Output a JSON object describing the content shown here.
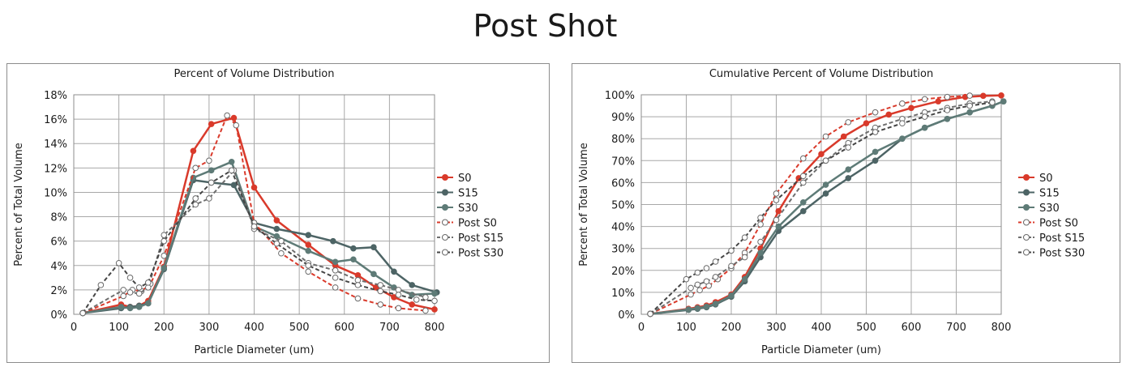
{
  "title": "Post Shot",
  "chart_data": [
    {
      "type": "line",
      "title": "Percent of Volume Distribution",
      "xlabel": "Particle Diameter (um)",
      "ylabel": "Percent of Total Volume",
      "xlim": [
        0,
        800
      ],
      "ylim": [
        0,
        18
      ],
      "xticks": [
        "0",
        "100",
        "200",
        "300",
        "400",
        "500",
        "600",
        "700",
        "800"
      ],
      "yticks": [
        "0%",
        "2%",
        "4%",
        "6%",
        "8%",
        "10%",
        "12%",
        "14%",
        "16%",
        "18%"
      ],
      "grid": true,
      "legend": "right",
      "series": [
        {
          "name": "S0",
          "color": "#d93a2b",
          "dash": false,
          "filled": true,
          "x": [
            20,
            105,
            125,
            145,
            165,
            200,
            265,
            305,
            355,
            400,
            450,
            520,
            580,
            630,
            670,
            710,
            750,
            800
          ],
          "y": [
            0.1,
            0.8,
            0.6,
            0.7,
            1.1,
            3.9,
            13.4,
            15.6,
            16.1,
            10.4,
            7.7,
            5.7,
            4.0,
            3.2,
            2.2,
            1.4,
            0.8,
            0.4
          ]
        },
        {
          "name": "S15",
          "color": "#4d6465",
          "dash": false,
          "filled": true,
          "x": [
            20,
            105,
            125,
            145,
            165,
            200,
            265,
            305,
            355,
            400,
            450,
            520,
            575,
            620,
            665,
            710,
            750,
            805
          ],
          "y": [
            0.1,
            0.5,
            0.6,
            0.7,
            0.9,
            3.7,
            11.0,
            10.8,
            10.6,
            7.5,
            7.0,
            6.5,
            6.0,
            5.4,
            5.5,
            3.5,
            2.4,
            1.8
          ]
        },
        {
          "name": "S30",
          "color": "#5e7b77",
          "dash": false,
          "filled": true,
          "x": [
            20,
            105,
            125,
            145,
            165,
            200,
            265,
            305,
            350,
            400,
            450,
            520,
            580,
            620,
            665,
            710,
            750,
            800
          ],
          "y": [
            0.1,
            0.6,
            0.5,
            0.6,
            0.9,
            3.8,
            11.2,
            11.8,
            12.5,
            7.2,
            6.4,
            5.2,
            4.3,
            4.5,
            3.3,
            2.2,
            1.6,
            1.7
          ]
        },
        {
          "name": "Post S0",
          "color": "#d93a2b",
          "dash": true,
          "filled": false,
          "x": [
            20,
            110,
            130,
            150,
            170,
            200,
            270,
            300,
            340,
            360,
            400,
            460,
            520,
            580,
            630,
            680,
            720,
            780
          ],
          "y": [
            0.1,
            1.5,
            2.0,
            1.9,
            2.5,
            4.8,
            12.0,
            12.6,
            16.3,
            15.5,
            7.5,
            5.0,
            3.5,
            2.2,
            1.3,
            0.8,
            0.5,
            0.3
          ]
        },
        {
          "name": "Post S15",
          "color": "#6e6e6e",
          "dash": true,
          "filled": false,
          "x": [
            20,
            110,
            125,
            145,
            165,
            200,
            270,
            300,
            355,
            400,
            460,
            520,
            580,
            630,
            680,
            720,
            780
          ],
          "y": [
            0.1,
            2.0,
            1.8,
            1.7,
            2.2,
            6.5,
            9.0,
            9.5,
            11.8,
            7.0,
            6.0,
            4.2,
            3.6,
            2.8,
            2.4,
            2.0,
            1.4
          ]
        },
        {
          "name": "Post S30",
          "color": "#454545",
          "dash": true,
          "filled": false,
          "x": [
            20,
            60,
            100,
            125,
            145,
            165,
            200,
            270,
            305,
            350,
            400,
            450,
            520,
            580,
            630,
            680,
            720,
            760,
            800
          ],
          "y": [
            0.1,
            2.4,
            4.2,
            3.0,
            2.2,
            2.6,
            6.0,
            9.5,
            10.8,
            11.8,
            7.2,
            5.8,
            4.0,
            3.0,
            2.4,
            1.9,
            1.6,
            1.2,
            1.1
          ]
        }
      ]
    },
    {
      "type": "line",
      "title": "Cumulative Percent of Volume Distribution",
      "xlabel": "Particle Diameter (um)",
      "ylabel": "Percent of Total Volume",
      "xlim": [
        0,
        800
      ],
      "ylim": [
        0,
        100
      ],
      "xticks": [
        "0",
        "100",
        "200",
        "300",
        "400",
        "500",
        "600",
        "700",
        "800"
      ],
      "yticks": [
        "0%",
        "10%",
        "20%",
        "30%",
        "40%",
        "50%",
        "60%",
        "70%",
        "80%",
        "90%",
        "100%"
      ],
      "grid": true,
      "legend": "right",
      "series": [
        {
          "name": "S0",
          "color": "#d93a2b",
          "dash": false,
          "filled": true,
          "x": [
            20,
            105,
            125,
            145,
            165,
            200,
            230,
            265,
            305,
            350,
            400,
            450,
            500,
            550,
            600,
            660,
            720,
            760,
            800
          ],
          "y": [
            0.2,
            2.5,
            3.2,
            4.0,
            5.5,
            9.0,
            17.0,
            30.0,
            47.0,
            62.0,
            73.0,
            81.0,
            87.0,
            91.0,
            94.0,
            97.0,
            99.0,
            99.5,
            99.7
          ]
        },
        {
          "name": "S15",
          "color": "#4d6465",
          "dash": false,
          "filled": true,
          "x": [
            20,
            105,
            125,
            145,
            165,
            200,
            230,
            265,
            305,
            360,
            410,
            460,
            520,
            580,
            630,
            680,
            730,
            780,
            805
          ],
          "y": [
            0.2,
            2.0,
            2.5,
            3.2,
            4.5,
            8.0,
            15.0,
            26.0,
            38.0,
            47.0,
            55.0,
            62.0,
            70.0,
            80.0,
            85.0,
            89.0,
            92.0,
            95.0,
            97.0
          ]
        },
        {
          "name": "S30",
          "color": "#5e7b77",
          "dash": false,
          "filled": true,
          "x": [
            20,
            105,
            125,
            145,
            165,
            200,
            230,
            265,
            305,
            360,
            410,
            460,
            520,
            580,
            630,
            680,
            730,
            780,
            805
          ],
          "y": [
            0.2,
            2.2,
            2.8,
            3.5,
            4.8,
            8.5,
            16.0,
            28.0,
            40.0,
            51.0,
            59.0,
            66.0,
            74.0,
            80.0,
            85.0,
            89.0,
            92.0,
            95.0,
            97.0
          ]
        },
        {
          "name": "Post S0",
          "color": "#d93a2b",
          "dash": true,
          "filled": false,
          "x": [
            20,
            110,
            130,
            150,
            170,
            200,
            230,
            265,
            300,
            360,
            410,
            460,
            520,
            580,
            630,
            680,
            730
          ],
          "y": [
            0.2,
            9.0,
            11.0,
            13.0,
            16.0,
            21.0,
            28.0,
            41.0,
            55.0,
            71.0,
            81.0,
            87.5,
            92.0,
            96.0,
            98.0,
            99.0,
            99.6
          ]
        },
        {
          "name": "Post S15",
          "color": "#6e6e6e",
          "dash": true,
          "filled": false,
          "x": [
            20,
            110,
            125,
            145,
            165,
            200,
            230,
            265,
            300,
            360,
            410,
            460,
            520,
            580,
            630,
            680,
            730,
            780
          ],
          "y": [
            0.2,
            12.0,
            13.5,
            15.0,
            17.0,
            22.0,
            26.0,
            33.0,
            43.0,
            60.0,
            70.0,
            78.0,
            85.0,
            89.0,
            92.0,
            94.0,
            96.0,
            97.0
          ]
        },
        {
          "name": "Post S30",
          "color": "#454545",
          "dash": true,
          "filled": false,
          "x": [
            20,
            100,
            125,
            145,
            165,
            200,
            230,
            265,
            300,
            360,
            410,
            460,
            520,
            580,
            630,
            680,
            730,
            780
          ],
          "y": [
            0.2,
            16.0,
            19.0,
            21.0,
            24.0,
            29.0,
            35.0,
            44.0,
            52.0,
            63.0,
            70.0,
            76.0,
            83.0,
            87.0,
            90.0,
            93.0,
            95.0,
            96.5
          ]
        }
      ]
    }
  ]
}
